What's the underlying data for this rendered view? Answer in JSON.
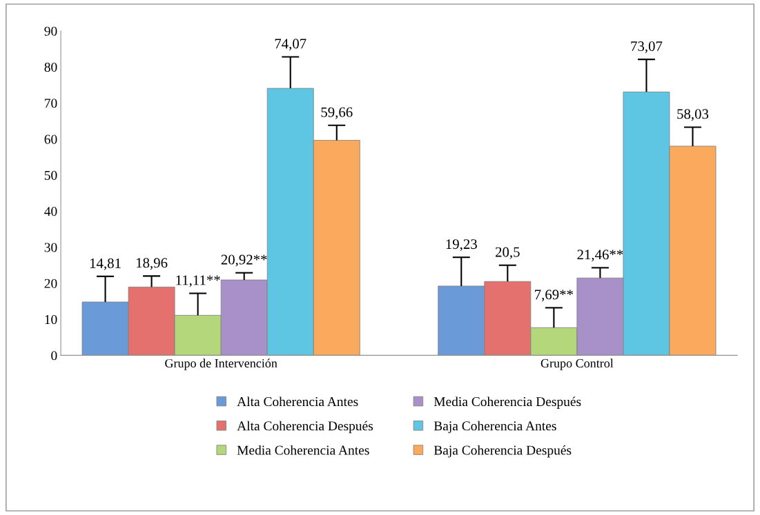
{
  "chart_data": {
    "type": "bar",
    "categories": [
      "Grupo de Intervención",
      "Grupo Control"
    ],
    "series": [
      {
        "name": "Alta Coherencia Antes",
        "color": "#6b9ad8",
        "values": [
          14.81,
          19.23
        ],
        "errors": [
          [
            14.81,
            21.9
          ],
          [
            19.23,
            27.2
          ]
        ],
        "value_labels": [
          "14,81",
          "19,23"
        ]
      },
      {
        "name": "Alta Coherencia Después",
        "color": "#e4716d",
        "values": [
          18.96,
          20.5
        ],
        "errors": [
          [
            18.96,
            22.0
          ],
          [
            20.5,
            25.0
          ]
        ],
        "value_labels": [
          "18,96",
          "20,5"
        ]
      },
      {
        "name": "Media Coherencia Antes",
        "color": "#b5d77c",
        "values": [
          11.11,
          7.69
        ],
        "errors": [
          [
            11.11,
            17.2
          ],
          [
            7.69,
            13.2
          ]
        ],
        "value_labels": [
          "11,11**",
          "7,69**"
        ]
      },
      {
        "name": "Media Coherencia Después",
        "color": "#a791c8",
        "values": [
          20.92,
          21.46
        ],
        "errors": [
          [
            20.92,
            22.9
          ],
          [
            21.46,
            24.3
          ]
        ],
        "value_labels": [
          "20,92**",
          "21,46**"
        ]
      },
      {
        "name": "Baja Coherencia Antes",
        "color": "#5ec6e2",
        "values": [
          74.07,
          73.07
        ],
        "errors": [
          [
            74.07,
            82.8
          ],
          [
            73.07,
            82.1
          ]
        ],
        "value_labels": [
          "74,07",
          "73,07"
        ]
      },
      {
        "name": "Baja Coherencia Después",
        "color": "#fba95c",
        "values": [
          59.66,
          58.03
        ],
        "errors": [
          [
            59.66,
            63.8
          ],
          [
            58.03,
            63.3
          ]
        ],
        "value_labels": [
          "59,66",
          "58,03"
        ]
      }
    ],
    "ylim": [
      0,
      90
    ],
    "yticks": [
      0,
      10,
      20,
      30,
      40,
      50,
      60,
      70,
      80,
      90
    ],
    "grid": false,
    "legend": "bottom"
  }
}
